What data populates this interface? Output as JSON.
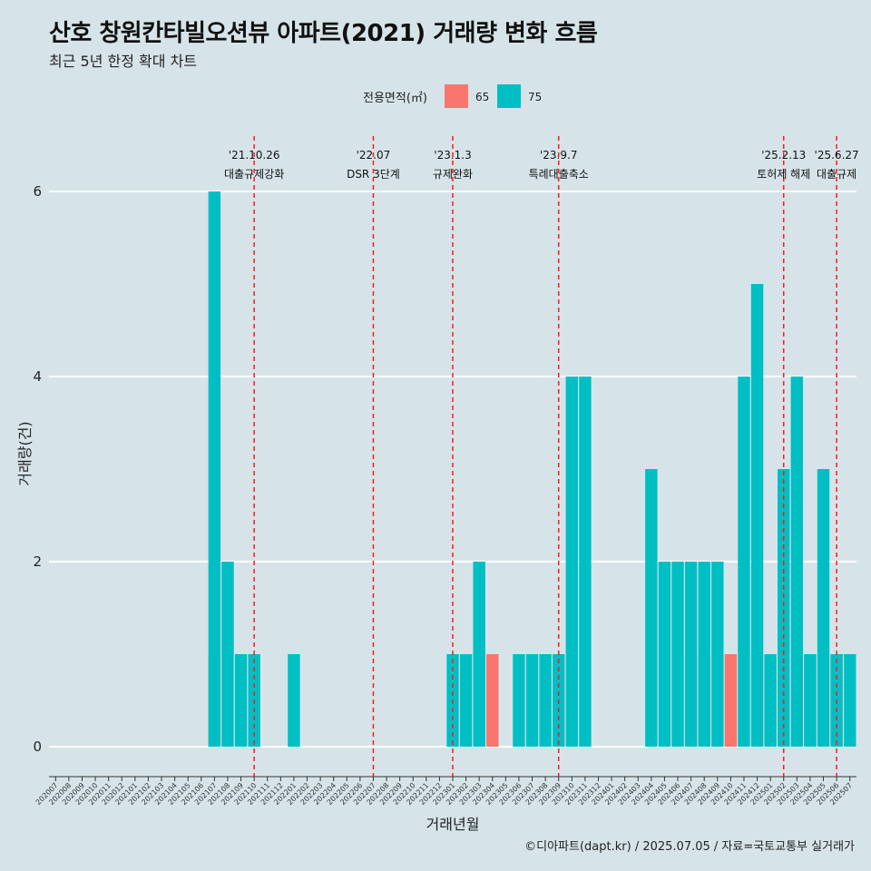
{
  "title": "산호 창원칸타빌오션뷰 아파트(2021) 거래량 변화 흐름",
  "subtitle": "최근 5년 한정 확대 차트",
  "caption": "©디아파트(dapt.kr) / 2025.07.05 / 자료=국토교통부 실거래가",
  "chart_data": {
    "type": "bar",
    "title": "산호 창원칸타빌오션뷰 아파트(2021) 거래량 변화 흐름",
    "subtitle": "최근 5년 한정 확대 차트",
    "xlabel": "거래년월",
    "ylabel": "거래량(건)",
    "ylim": [
      0,
      6.5
    ],
    "yticks": [
      0,
      2,
      4,
      6
    ],
    "grid": true,
    "stacked": false,
    "legend": {
      "title": "전용면적(㎡)",
      "position": "top"
    },
    "categories": [
      "202007",
      "202008",
      "202009",
      "202010",
      "202011",
      "202012",
      "202101",
      "202102",
      "202103",
      "202104",
      "202105",
      "202106",
      "202107",
      "202108",
      "202109",
      "202110",
      "202111",
      "202112",
      "202201",
      "202202",
      "202203",
      "202204",
      "202205",
      "202206",
      "202207",
      "202208",
      "202209",
      "202210",
      "202211",
      "202212",
      "202301",
      "202302",
      "202303",
      "202304",
      "202305",
      "202306",
      "202307",
      "202308",
      "202309",
      "202310",
      "202311",
      "202312",
      "202401",
      "202402",
      "202403",
      "202404",
      "202405",
      "202406",
      "202407",
      "202408",
      "202409",
      "202410",
      "202411",
      "202412",
      "202501",
      "202502",
      "202503",
      "202504",
      "202505",
      "202506",
      "202507"
    ],
    "series": [
      {
        "name": "65",
        "color": "#f8766d",
        "values": [
          0,
          0,
          0,
          0,
          0,
          0,
          0,
          0,
          0,
          0,
          0,
          0,
          1,
          0,
          0,
          0,
          0,
          0,
          0,
          0,
          0,
          0,
          0,
          0,
          0,
          0,
          0,
          0,
          0,
          0,
          0,
          0,
          0,
          1,
          0,
          0,
          0,
          0,
          0,
          0,
          0,
          0,
          0,
          0,
          0,
          0,
          0,
          0,
          1,
          1,
          0,
          1,
          0,
          1,
          0,
          0,
          0,
          1,
          0,
          1,
          1
        ]
      },
      {
        "name": "75",
        "color": "#00bfc4",
        "values": [
          0,
          0,
          0,
          0,
          0,
          0,
          0,
          0,
          0,
          0,
          0,
          0,
          6,
          2,
          1,
          1,
          0,
          0,
          1,
          0,
          0,
          0,
          0,
          0,
          0,
          0,
          0,
          0,
          0,
          0,
          1,
          1,
          2,
          0,
          0,
          1,
          1,
          1,
          1,
          4,
          4,
          0,
          0,
          0,
          0,
          3,
          2,
          2,
          2,
          2,
          2,
          0,
          4,
          5,
          1,
          3,
          4,
          1,
          3,
          1,
          1
        ]
      }
    ],
    "annotations": [
      {
        "x": "202110",
        "date": "'21.10.26",
        "label": "대출규제강화"
      },
      {
        "x": "202207",
        "date": "'22.07",
        "label": "DSR 3단계"
      },
      {
        "x": "202301",
        "date": "'23.1.3",
        "label": "규제완화"
      },
      {
        "x": "202309",
        "date": "'23.9.7",
        "label": "특례대출축소"
      },
      {
        "x": "202502",
        "date": "'25.2.13",
        "label": "토허제 해제"
      },
      {
        "x": "202506",
        "date": "'25.6.27",
        "label": "대출규제"
      }
    ]
  }
}
